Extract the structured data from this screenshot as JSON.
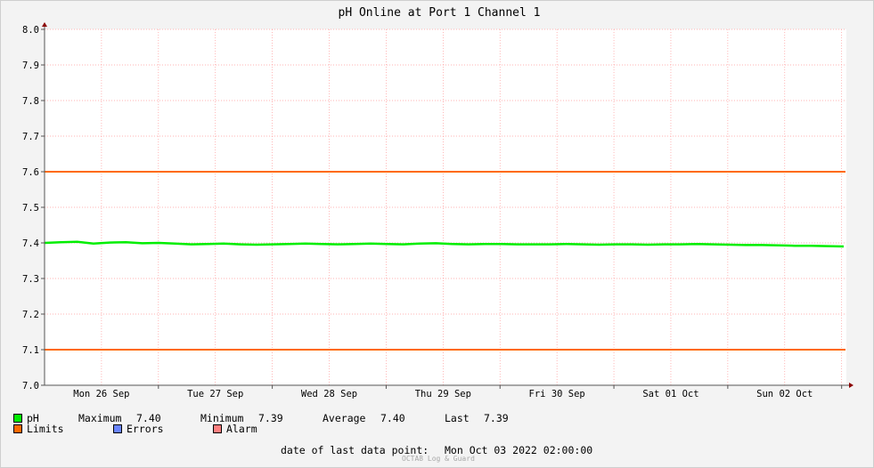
{
  "chart_data": {
    "type": "line",
    "title": "pH Online at Port 1 Channel 1",
    "ylim": [
      7.0,
      8.0
    ],
    "y_ticks": [
      "7.0",
      "7.1",
      "7.2",
      "7.3",
      "7.4",
      "7.5",
      "7.6",
      "7.7",
      "7.8",
      "7.9",
      "8.0"
    ],
    "x_labels": [
      "Mon 26 Sep",
      "Tue 27 Sep",
      "Wed 28 Sep",
      "Thu 29 Sep",
      "Fri 30 Sep",
      "Sat 01 Oct",
      "Sun 02 Oct"
    ],
    "grid": true,
    "limits": [
      7.1,
      7.6
    ],
    "series": [
      {
        "name": "pH",
        "color": "#00ee00",
        "values": [
          7.4,
          7.402,
          7.403,
          7.398,
          7.401,
          7.402,
          7.399,
          7.4,
          7.398,
          7.396,
          7.397,
          7.398,
          7.396,
          7.395,
          7.396,
          7.397,
          7.398,
          7.397,
          7.396,
          7.397,
          7.398,
          7.397,
          7.396,
          7.398,
          7.399,
          7.397,
          7.396,
          7.397,
          7.397,
          7.396,
          7.396,
          7.396,
          7.397,
          7.396,
          7.395,
          7.396,
          7.396,
          7.395,
          7.396,
          7.396,
          7.397,
          7.396,
          7.395,
          7.394,
          7.394,
          7.393,
          7.392,
          7.392,
          7.391,
          7.39
        ]
      }
    ]
  },
  "legend": {
    "ph_label": "pH",
    "maximum_label": "Maximum",
    "maximum_value": "7.40",
    "minimum_label": "Minimum",
    "minimum_value": "7.39",
    "average_label": "Average",
    "average_value": "7.40",
    "last_label": "Last",
    "last_value": "7.39",
    "limits_label": "Limits",
    "errors_label": "Errors",
    "alarm_label": "Alarm"
  },
  "colors": {
    "ph": "#00ee00",
    "limits": "#ff6a00",
    "errors": "#6a85ff",
    "alarm": "#ff7f7f",
    "grid": "#ff9a9a",
    "axis": "#8b0000"
  },
  "footer": {
    "last_point_label": "date of last data point:",
    "last_point_value": "Mon Oct 03 2022 02:00:00",
    "watermark": "OCTA8 Log & Guard"
  }
}
